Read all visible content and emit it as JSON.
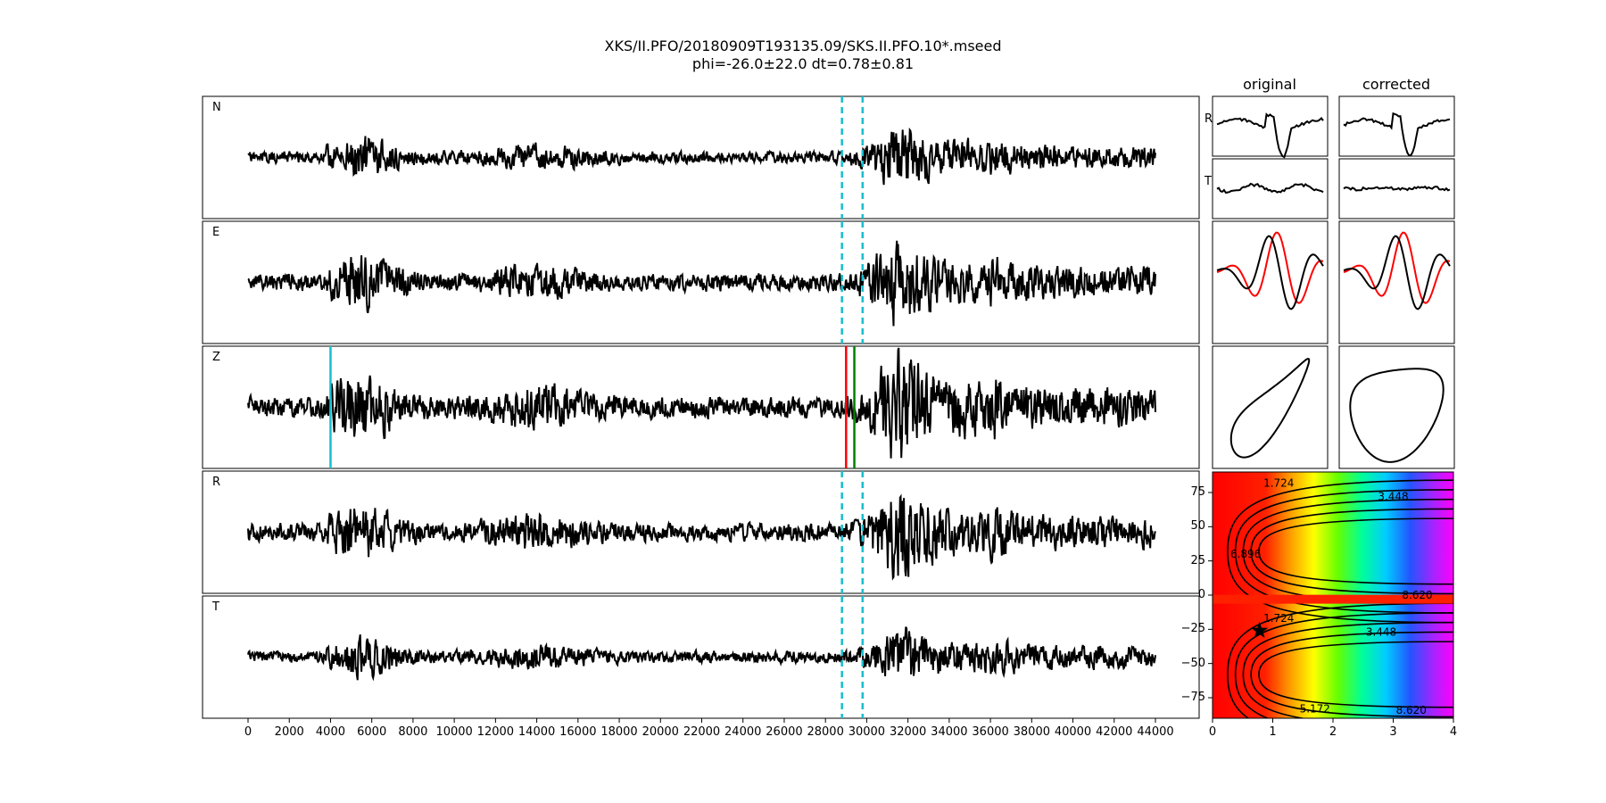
{
  "title": {
    "line1": "XKS/II.PFO/20180909T193135.09/SKS.II.PFO.10*.mseed",
    "line2": "phi=-26.0±22.0 dt=0.78±0.81"
  },
  "columns": {
    "original": "original",
    "corrected": "corrected"
  },
  "traces": [
    {
      "label": "N",
      "seed": 11,
      "amp": 0.45
    },
    {
      "label": "E",
      "seed": 23,
      "amp": 0.62
    },
    {
      "label": "Z",
      "seed": 37,
      "amp": 0.78
    },
    {
      "label": "R",
      "seed": 41,
      "amp": 0.65
    },
    {
      "label": "T",
      "seed": 53,
      "amp": 0.45
    }
  ],
  "small_labels": {
    "r": "R",
    "t": "T"
  },
  "colors": {
    "trace": "#000000",
    "window": "#17becf",
    "pick_red": "#ff0000",
    "pick_green": "#008000",
    "cyan_pick": "#17becf"
  },
  "chart_data": [
    {
      "type": "line",
      "name": "waveforms",
      "x_range": [
        0,
        44000
      ],
      "x_ticks": [
        "0",
        "2000",
        "4000",
        "6000",
        "8000",
        "10000",
        "12000",
        "14000",
        "16000",
        "18000",
        "20000",
        "22000",
        "24000",
        "26000",
        "28000",
        "30000",
        "32000",
        "34000",
        "36000",
        "38000",
        "40000",
        "42000",
        "44000"
      ],
      "window": [
        28800,
        29800
      ],
      "z_picks": [
        {
          "x": 4000,
          "color": "#17becf"
        },
        {
          "x": 29000,
          "color": "#ff0000"
        },
        {
          "x": 29400,
          "color": "#008000"
        }
      ]
    },
    {
      "type": "heatmap",
      "name": "grid_search",
      "xlim": [
        0,
        4
      ],
      "ylim": [
        -90,
        90
      ],
      "x_ticks": [
        "0",
        "1",
        "2",
        "3",
        "4"
      ],
      "y_ticks": [
        "75",
        "50",
        "25",
        "0",
        "−25",
        "−50",
        "−75"
      ],
      "contour_labels": [
        "1.724",
        "3.448",
        "5.172",
        "6.896",
        "8.620"
      ],
      "best": {
        "dt": 0.78,
        "phi": -26.0
      }
    }
  ]
}
